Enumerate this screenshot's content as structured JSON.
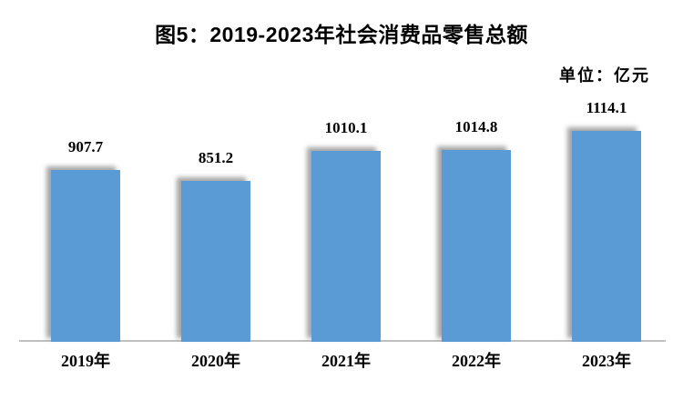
{
  "title": "图5：2019-2023年社会消费品零售总额",
  "unit_label": "单位：亿元",
  "chart_data": {
    "type": "bar",
    "title": "图5：2019-2023年社会消费品零售总额",
    "unit": "单位：亿元",
    "categories": [
      "2019年",
      "2020年",
      "2021年",
      "2022年",
      "2023年"
    ],
    "values": [
      907.7,
      851.2,
      1010.1,
      1014.8,
      1114.1
    ],
    "value_labels": [
      "907.7",
      "851.2",
      "1010.1",
      "1014.8",
      "1114.1"
    ],
    "xlabel": "",
    "ylabel": "",
    "ylim": [
      0,
      1200
    ],
    "grid": false,
    "legend": false,
    "data_labels_position": "above-bar",
    "bar_color": "#5B9BD5",
    "bar_shadow_color": "#696969",
    "axis_line_color": "#bfbfbf",
    "text_color": "#000000"
  }
}
